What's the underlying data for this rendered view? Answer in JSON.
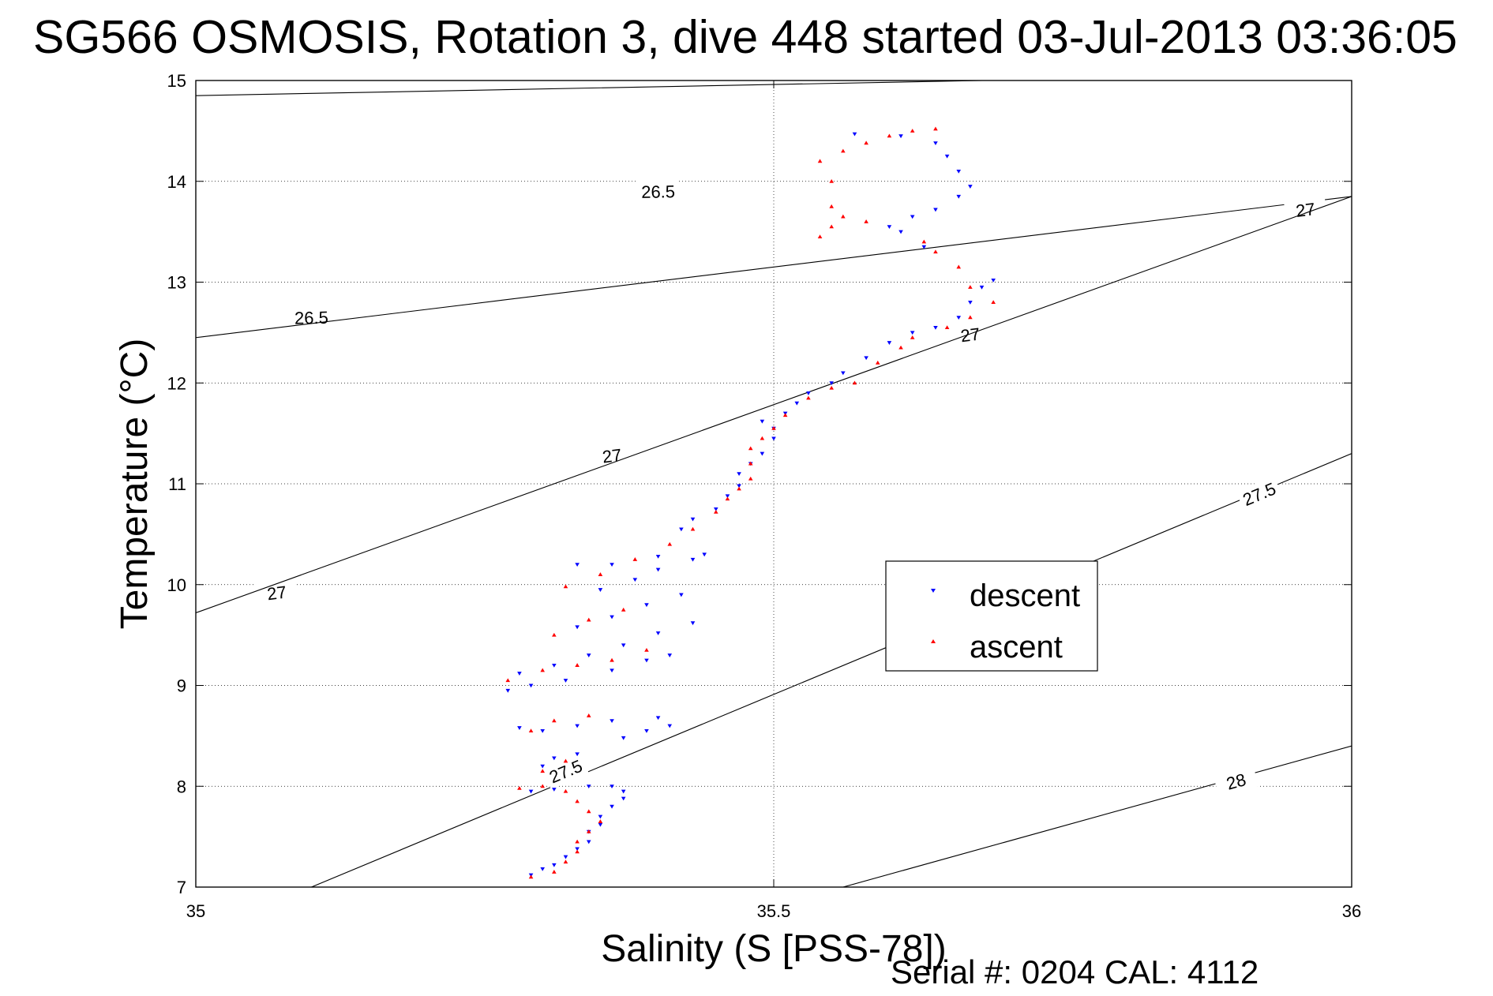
{
  "chart_data": {
    "type": "scatter",
    "title": "SG566 OSMOSIS, Rotation 3, dive 448 started 03-Jul-2013 03:36:05",
    "xlabel": "Salinity (S [PSS-78])",
    "ylabel": "Temperature (°C)",
    "xlim": [
      35,
      36
    ],
    "ylim": [
      7,
      15
    ],
    "xticks": [
      35,
      35.5,
      36
    ],
    "xtick_labels": [
      "35",
      "35.5",
      "36"
    ],
    "yticks": [
      7,
      8,
      9,
      10,
      11,
      12,
      13,
      14,
      15
    ],
    "ytick_labels": [
      "7",
      "8",
      "9",
      "10",
      "11",
      "12",
      "13",
      "14",
      "15"
    ],
    "grid": true,
    "legend_position": "center-right",
    "footer": "Serial #: 0204  CAL: 4112",
    "density_contours": [
      {
        "label": "26.5",
        "line": [
          [
            35,
            14.85
          ],
          [
            35.68,
            15
          ]
        ],
        "label_positions": [
          [
            35.1,
            12.65
          ],
          [
            35.4,
            13.9
          ]
        ]
      },
      {
        "label": "27",
        "line": [
          [
            35,
            12.45
          ],
          [
            36,
            13.85
          ]
        ],
        "label_positions": [
          [
            35.07,
            9.92
          ],
          [
            35.36,
            11.28
          ],
          [
            35.67,
            12.48
          ],
          [
            35.96,
            13.72
          ]
        ]
      },
      {
        "label": "27",
        "line": [
          [
            35,
            9.72
          ],
          [
            36,
            13.85
          ]
        ],
        "label_positions": []
      },
      {
        "label": "27.5",
        "line": [
          [
            35.1,
            7
          ],
          [
            36,
            11.3
          ]
        ],
        "label_positions": [
          [
            35.32,
            8.15
          ],
          [
            35.92,
            10.9
          ]
        ]
      },
      {
        "label": "28",
        "line": [
          [
            35.56,
            7
          ],
          [
            36,
            8.4
          ]
        ],
        "label_positions": [
          [
            35.9,
            8.05
          ]
        ]
      }
    ],
    "series": [
      {
        "name": "descent",
        "color": "#0000ff",
        "marker": "triangle-down",
        "points": [
          [
            35.29,
            7.12
          ],
          [
            35.3,
            7.18
          ],
          [
            35.31,
            7.22
          ],
          [
            35.32,
            7.3
          ],
          [
            35.33,
            7.38
          ],
          [
            35.34,
            7.45
          ],
          [
            35.34,
            7.55
          ],
          [
            35.35,
            7.62
          ],
          [
            35.35,
            7.7
          ],
          [
            35.36,
            7.8
          ],
          [
            35.37,
            7.88
          ],
          [
            35.37,
            7.95
          ],
          [
            35.36,
            8.0
          ],
          [
            35.34,
            8.0
          ],
          [
            35.31,
            7.97
          ],
          [
            35.29,
            7.95
          ],
          [
            35.3,
            8.2
          ],
          [
            35.31,
            8.28
          ],
          [
            35.33,
            8.32
          ],
          [
            35.37,
            8.48
          ],
          [
            35.39,
            8.55
          ],
          [
            35.41,
            8.6
          ],
          [
            35.28,
            8.58
          ],
          [
            35.3,
            8.55
          ],
          [
            35.33,
            8.6
          ],
          [
            35.36,
            8.65
          ],
          [
            35.4,
            8.68
          ],
          [
            35.27,
            8.95
          ],
          [
            35.29,
            9.0
          ],
          [
            35.32,
            9.05
          ],
          [
            35.36,
            9.15
          ],
          [
            35.39,
            9.25
          ],
          [
            35.41,
            9.3
          ],
          [
            35.28,
            9.12
          ],
          [
            35.31,
            9.2
          ],
          [
            35.34,
            9.3
          ],
          [
            35.37,
            9.4
          ],
          [
            35.4,
            9.52
          ],
          [
            35.43,
            9.62
          ],
          [
            35.33,
            9.58
          ],
          [
            35.36,
            9.68
          ],
          [
            35.39,
            9.8
          ],
          [
            35.42,
            9.9
          ],
          [
            35.35,
            9.95
          ],
          [
            35.38,
            10.05
          ],
          [
            35.4,
            10.15
          ],
          [
            35.43,
            10.25
          ],
          [
            35.44,
            10.3
          ],
          [
            35.33,
            10.2
          ],
          [
            35.36,
            10.2
          ],
          [
            35.4,
            10.28
          ],
          [
            35.42,
            10.55
          ],
          [
            35.43,
            10.65
          ],
          [
            35.45,
            10.75
          ],
          [
            35.46,
            10.88
          ],
          [
            35.47,
            10.98
          ],
          [
            35.47,
            11.1
          ],
          [
            35.48,
            11.2
          ],
          [
            35.49,
            11.3
          ],
          [
            35.5,
            11.45
          ],
          [
            35.5,
            11.55
          ],
          [
            35.49,
            11.62
          ],
          [
            35.51,
            11.7
          ],
          [
            35.52,
            11.8
          ],
          [
            35.53,
            11.9
          ],
          [
            35.55,
            12.0
          ],
          [
            35.56,
            12.1
          ],
          [
            35.58,
            12.25
          ],
          [
            35.6,
            12.4
          ],
          [
            35.62,
            12.5
          ],
          [
            35.64,
            12.55
          ],
          [
            35.66,
            12.65
          ],
          [
            35.67,
            12.8
          ],
          [
            35.68,
            12.95
          ],
          [
            35.69,
            13.02
          ],
          [
            35.63,
            13.35
          ],
          [
            35.61,
            13.5
          ],
          [
            35.6,
            13.55
          ],
          [
            35.62,
            13.65
          ],
          [
            35.64,
            13.72
          ],
          [
            35.66,
            13.85
          ],
          [
            35.67,
            13.95
          ],
          [
            35.66,
            14.1
          ],
          [
            35.65,
            14.25
          ],
          [
            35.64,
            14.38
          ],
          [
            35.61,
            14.45
          ],
          [
            35.57,
            14.47
          ]
        ]
      },
      {
        "name": "ascent",
        "color": "#ff0000",
        "marker": "triangle-up",
        "points": [
          [
            35.29,
            7.1
          ],
          [
            35.31,
            7.15
          ],
          [
            35.32,
            7.25
          ],
          [
            35.33,
            7.35
          ],
          [
            35.33,
            7.45
          ],
          [
            35.34,
            7.55
          ],
          [
            35.35,
            7.65
          ],
          [
            35.34,
            7.75
          ],
          [
            35.33,
            7.85
          ],
          [
            35.32,
            7.95
          ],
          [
            35.3,
            8.0
          ],
          [
            35.28,
            7.98
          ],
          [
            35.3,
            8.15
          ],
          [
            35.32,
            8.25
          ],
          [
            35.29,
            8.55
          ],
          [
            35.31,
            8.65
          ],
          [
            35.34,
            8.7
          ],
          [
            35.27,
            9.05
          ],
          [
            35.3,
            9.15
          ],
          [
            35.33,
            9.2
          ],
          [
            35.36,
            9.25
          ],
          [
            35.39,
            9.35
          ],
          [
            35.31,
            9.5
          ],
          [
            35.34,
            9.65
          ],
          [
            35.37,
            9.75
          ],
          [
            35.32,
            9.98
          ],
          [
            35.35,
            10.1
          ],
          [
            35.38,
            10.25
          ],
          [
            35.41,
            10.4
          ],
          [
            35.43,
            10.55
          ],
          [
            35.45,
            10.72
          ],
          [
            35.46,
            10.85
          ],
          [
            35.47,
            10.95
          ],
          [
            35.48,
            11.05
          ],
          [
            35.48,
            11.2
          ],
          [
            35.48,
            11.35
          ],
          [
            35.49,
            11.45
          ],
          [
            35.5,
            11.55
          ],
          [
            35.51,
            11.68
          ],
          [
            35.53,
            11.85
          ],
          [
            35.55,
            11.95
          ],
          [
            35.57,
            12.0
          ],
          [
            35.59,
            12.2
          ],
          [
            35.61,
            12.35
          ],
          [
            35.62,
            12.45
          ],
          [
            35.65,
            12.55
          ],
          [
            35.67,
            12.65
          ],
          [
            35.69,
            12.8
          ],
          [
            35.67,
            12.95
          ],
          [
            35.66,
            13.15
          ],
          [
            35.64,
            13.3
          ],
          [
            35.63,
            13.4
          ],
          [
            35.54,
            13.45
          ],
          [
            35.55,
            13.55
          ],
          [
            35.56,
            13.65
          ],
          [
            35.58,
            13.6
          ],
          [
            35.55,
            13.75
          ],
          [
            35.55,
            14.0
          ],
          [
            35.54,
            14.2
          ],
          [
            35.56,
            14.3
          ],
          [
            35.58,
            14.38
          ],
          [
            35.6,
            14.45
          ],
          [
            35.62,
            14.5
          ],
          [
            35.64,
            14.52
          ]
        ]
      }
    ]
  }
}
